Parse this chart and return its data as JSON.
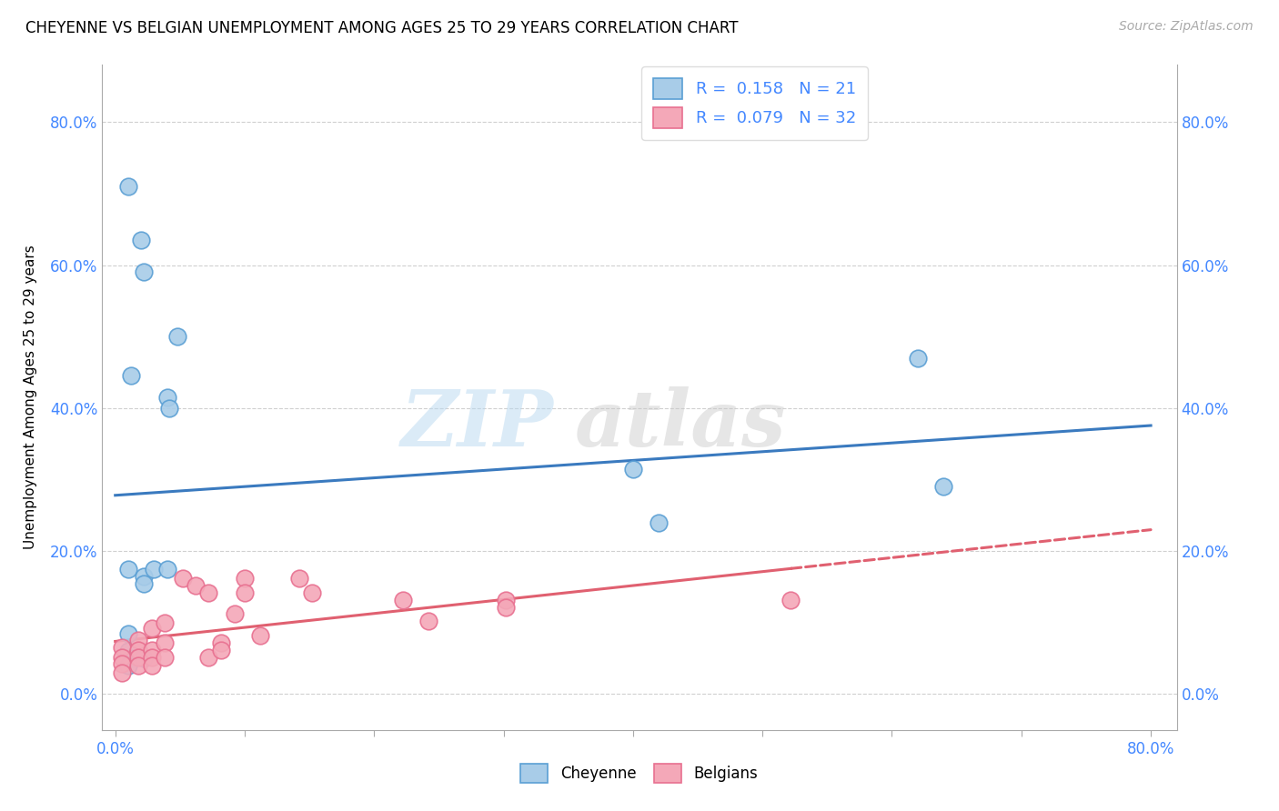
{
  "title": "CHEYENNE VS BELGIAN UNEMPLOYMENT AMONG AGES 25 TO 29 YEARS CORRELATION CHART",
  "source": "Source: ZipAtlas.com",
  "ylabel": "Unemployment Among Ages 25 to 29 years",
  "ytick_labels": [
    "0.0%",
    "20.0%",
    "40.0%",
    "60.0%",
    "80.0%"
  ],
  "ytick_values": [
    0.0,
    0.2,
    0.4,
    0.6,
    0.8
  ],
  "xlim": [
    -0.01,
    0.82
  ],
  "ylim": [
    -0.05,
    0.88
  ],
  "cheyenne_color": "#a8cce8",
  "belgian_color": "#f4a8b8",
  "cheyenne_edge_color": "#5a9fd4",
  "belgian_edge_color": "#e87090",
  "cheyenne_line_color": "#3a7abf",
  "belgian_line_color": "#e06070",
  "R_cheyenne": 0.158,
  "N_cheyenne": 21,
  "R_belgian": 0.079,
  "N_belgian": 32,
  "cheyenne_points": [
    [
      0.01,
      0.71
    ],
    [
      0.02,
      0.635
    ],
    [
      0.022,
      0.59
    ],
    [
      0.012,
      0.445
    ],
    [
      0.048,
      0.5
    ],
    [
      0.04,
      0.415
    ],
    [
      0.042,
      0.4
    ],
    [
      0.01,
      0.175
    ],
    [
      0.022,
      0.165
    ],
    [
      0.03,
      0.175
    ],
    [
      0.04,
      0.175
    ],
    [
      0.022,
      0.155
    ],
    [
      0.01,
      0.085
    ],
    [
      0.01,
      0.06
    ],
    [
      0.012,
      0.05
    ],
    [
      0.022,
      0.05
    ],
    [
      0.01,
      0.04
    ],
    [
      0.4,
      0.315
    ],
    [
      0.42,
      0.24
    ],
    [
      0.62,
      0.47
    ],
    [
      0.64,
      0.29
    ]
  ],
  "belgian_points": [
    [
      0.005,
      0.065
    ],
    [
      0.005,
      0.052
    ],
    [
      0.005,
      0.042
    ],
    [
      0.005,
      0.03
    ],
    [
      0.018,
      0.075
    ],
    [
      0.018,
      0.062
    ],
    [
      0.018,
      0.052
    ],
    [
      0.018,
      0.04
    ],
    [
      0.028,
      0.092
    ],
    [
      0.028,
      0.062
    ],
    [
      0.028,
      0.052
    ],
    [
      0.028,
      0.04
    ],
    [
      0.038,
      0.1
    ],
    [
      0.038,
      0.072
    ],
    [
      0.038,
      0.052
    ],
    [
      0.052,
      0.162
    ],
    [
      0.062,
      0.152
    ],
    [
      0.072,
      0.142
    ],
    [
      0.072,
      0.052
    ],
    [
      0.082,
      0.072
    ],
    [
      0.082,
      0.062
    ],
    [
      0.092,
      0.112
    ],
    [
      0.1,
      0.162
    ],
    [
      0.1,
      0.142
    ],
    [
      0.112,
      0.082
    ],
    [
      0.142,
      0.162
    ],
    [
      0.152,
      0.142
    ],
    [
      0.222,
      0.132
    ],
    [
      0.242,
      0.102
    ],
    [
      0.302,
      0.132
    ],
    [
      0.302,
      0.122
    ],
    [
      0.522,
      0.132
    ]
  ],
  "watermark_zip": "ZIP",
  "watermark_atlas": "atlas",
  "grid_color": "#d0d0d0",
  "tick_label_color": "#4488ff",
  "spine_color": "#aaaaaa"
}
